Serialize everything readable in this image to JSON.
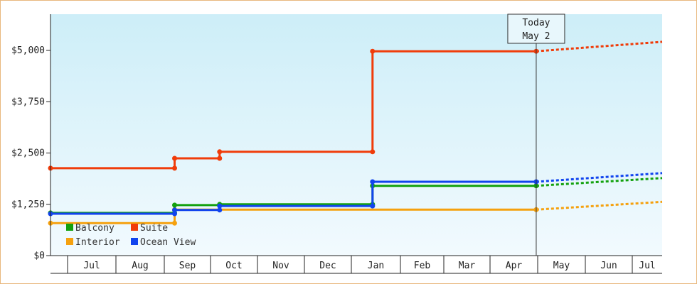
{
  "chart_data": {
    "type": "line",
    "step": true,
    "y_ticks": [
      0,
      1250,
      2500,
      3750,
      5000
    ],
    "y_tick_labels": [
      "$0",
      "$1,250",
      "$2,500",
      "$3,750",
      "$5,000"
    ],
    "ylim": [
      0,
      5000
    ],
    "months": [
      "Jul",
      "Aug",
      "Sep",
      "Oct",
      "Nov",
      "Dec",
      "Jan",
      "Feb",
      "Mar",
      "Apr",
      "May",
      "Jun",
      "Jul"
    ],
    "today": {
      "line1": "Today",
      "line2": "May 2"
    },
    "legend": {
      "position": "bottom-left",
      "columns": 2
    },
    "colors": {
      "Balcony": "#13a10e",
      "Suite": "#f03c0a",
      "Interior": "#f5a10f",
      "Ocean View": "#1144ee",
      "bg_top": "#cdeef8",
      "bg_bottom": "#f2fafe"
    },
    "series": [
      {
        "name": "Balcony",
        "points": [
          [
            0,
            1040
          ],
          [
            6.9,
            1040
          ],
          [
            6.9,
            1230
          ],
          [
            9.4,
            1230
          ],
          [
            9.4,
            1250
          ],
          [
            17.9,
            1250
          ],
          [
            17.9,
            1700
          ],
          [
            27.0,
            1700
          ]
        ],
        "projection": [
          [
            27.0,
            1700
          ],
          [
            34.0,
            1890
          ]
        ]
      },
      {
        "name": "Suite",
        "points": [
          [
            0,
            2130
          ],
          [
            6.9,
            2130
          ],
          [
            6.9,
            2370
          ],
          [
            9.4,
            2370
          ],
          [
            9.4,
            2530
          ],
          [
            17.9,
            2530
          ],
          [
            17.9,
            4980
          ],
          [
            27.0,
            4980
          ]
        ],
        "projection": [
          [
            27.0,
            4980
          ],
          [
            34.0,
            5210
          ]
        ]
      },
      {
        "name": "Interior",
        "points": [
          [
            0,
            790
          ],
          [
            6.9,
            790
          ],
          [
            6.9,
            1120
          ],
          [
            17.9,
            1120
          ],
          [
            27.0,
            1120
          ]
        ],
        "projection": [
          [
            27.0,
            1120
          ],
          [
            34.0,
            1310
          ]
        ]
      },
      {
        "name": "Ocean View",
        "points": [
          [
            0,
            1020
          ],
          [
            6.9,
            1020
          ],
          [
            6.9,
            1110
          ],
          [
            9.4,
            1110
          ],
          [
            9.4,
            1210
          ],
          [
            17.9,
            1210
          ],
          [
            17.9,
            1800
          ],
          [
            27.0,
            1800
          ]
        ],
        "projection": [
          [
            27.0,
            1800
          ],
          [
            34.0,
            2010
          ]
        ]
      }
    ]
  }
}
